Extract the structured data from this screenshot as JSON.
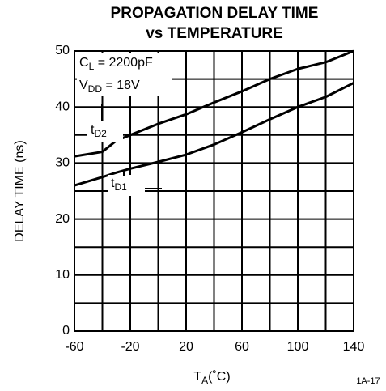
{
  "chart_data": {
    "type": "line",
    "title_lines": [
      "PROPAGATION DELAY TIME",
      "vs TEMPERATURE"
    ],
    "x_label": {
      "main": "T",
      "sub": "A",
      "rest": "(˚C)"
    },
    "y_label": "DELAY TIME (ns)",
    "figure_id": "1A-17",
    "annotations": [
      {
        "main": "C",
        "sub": "L",
        "rest": " = 2200pF"
      },
      {
        "main": "V",
        "sub": "DD",
        "rest": " = 18V"
      }
    ],
    "x": [
      -60,
      -40,
      -30,
      -20,
      0,
      20,
      40,
      60,
      80,
      100,
      120,
      140
    ],
    "series": [
      {
        "name": {
          "main": "t",
          "sub": "D2"
        },
        "color": "#000000",
        "values": [
          31.2,
          32,
          34,
          35,
          37,
          38.7,
          40.8,
          42.8,
          45,
          46.8,
          48,
          50
        ]
      },
      {
        "name": {
          "main": "t",
          "sub": "D1"
        },
        "color": "#000000",
        "values": [
          26,
          27.5,
          28.3,
          29,
          30.2,
          31.5,
          33.3,
          35.5,
          37.8,
          40,
          41.8,
          44.3
        ]
      }
    ],
    "xlim": [
      -60,
      140
    ],
    "ylim": [
      0,
      50
    ],
    "xticks": [
      -60,
      -20,
      20,
      60,
      100,
      140
    ],
    "xminor": [
      -40,
      0,
      40,
      80,
      120
    ],
    "yticks": [
      0,
      10,
      20,
      30,
      40,
      50
    ],
    "yminor": [
      5,
      15,
      25,
      35,
      45
    ],
    "grid": true
  }
}
